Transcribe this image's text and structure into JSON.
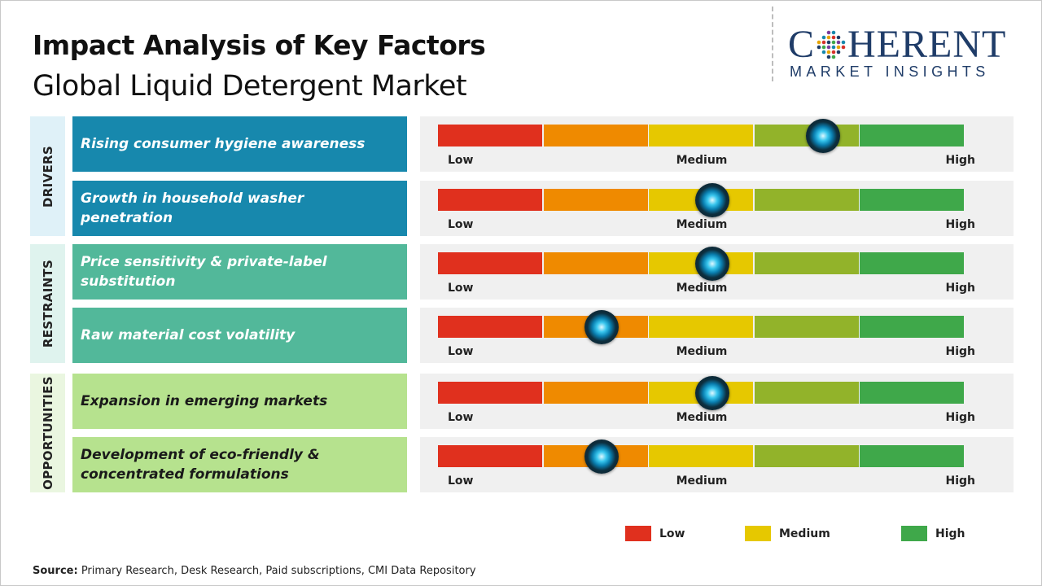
{
  "header": {
    "title": "Impact Analysis of Key Factors",
    "subtitle": "Global Liquid Detergent Market"
  },
  "logo": {
    "main_left": "C",
    "main_right": "HERENT",
    "sub": "MARKET INSIGHTS"
  },
  "colors": {
    "low": "#e0301e",
    "low_mid": "#ef8a00",
    "medium": "#e6c800",
    "mid_high": "#92b32a",
    "high": "#3fa84a",
    "drivers_cat": "#dff1f8",
    "drivers_factor": "#1788ad",
    "restraints_cat": "#dff3ee",
    "restraints_factor": "#52b89a",
    "opportunities_cat": "#eaf6e0",
    "opportunities_factor": "#b6e28e"
  },
  "chart_data": {
    "type": "impact-meter",
    "scale": {
      "low_label": "Low",
      "medium_label": "Medium",
      "high_label": "High",
      "segments": 5
    },
    "categories": [
      {
        "name": "DRIVERS",
        "factors": [
          {
            "label": "Rising consumer hygiene awareness",
            "impact": 0.73
          },
          {
            "label": "Growth in household washer penetration",
            "impact": 0.52
          }
        ]
      },
      {
        "name": "RESTRAINTS",
        "factors": [
          {
            "label": "Price sensitivity & private-label substitution",
            "impact": 0.52
          },
          {
            "label": "Raw material cost volatility",
            "impact": 0.31
          }
        ]
      },
      {
        "name": "OPPORTUNITIES",
        "factors": [
          {
            "label": "Expansion in emerging markets",
            "impact": 0.52
          },
          {
            "label": "Development of eco-friendly & concentrated formulations",
            "impact": 0.31
          }
        ]
      }
    ],
    "legend": [
      {
        "label": "Low",
        "color": "#e0301e"
      },
      {
        "label": "Medium",
        "color": "#e6c800"
      },
      {
        "label": "High",
        "color": "#3fa84a"
      }
    ]
  },
  "footer": {
    "source_label": "Source:",
    "source_text": " Primary Research, Desk Research, Paid subscriptions, CMI Data Repository"
  }
}
